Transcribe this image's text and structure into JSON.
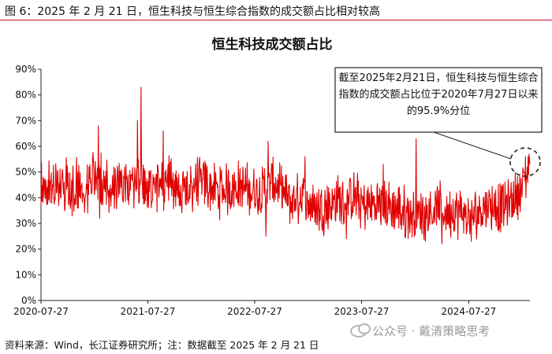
{
  "figure_caption": "图 6：2025 年 2 月 21 日，恒生科技与恒生综合指数的成交额占比相对较高",
  "source_note": "资料来源：Wind，长江证券研究所；注：数据截至 2025 年 2 月 21 日",
  "watermark": {
    "text": "公众号 · 戴清策略思考",
    "icon": "wechat-icon"
  },
  "colors": {
    "series": "#e00000",
    "caption_rule": "#c8102e",
    "axis": "#222222",
    "callout_border": "#222222"
  },
  "chart_data": {
    "type": "line",
    "title": "恒生科技成交额占比",
    "xlabel": "",
    "ylabel": "",
    "x_ticks": [
      "2020-07-27",
      "2021-07-27",
      "2022-07-27",
      "2023-07-27",
      "2024-07-27"
    ],
    "x_range": [
      "2020-07-27",
      "2025-02-21"
    ],
    "y_ticks": [
      "0%",
      "10%",
      "20%",
      "30%",
      "40%",
      "50%",
      "60%",
      "70%",
      "80%",
      "90%"
    ],
    "ylim": [
      0,
      90
    ],
    "grid": false,
    "legend": false,
    "annotation": "截至2025年2月21日，恒生科技与恒生综合指数的成交额占比位于2020年7月27日以来的95.9%分位",
    "series": [
      {
        "x": [
          "2020-07-27",
          "2020-09-01",
          "2020-10-01",
          "2020-11-01",
          "2020-12-01",
          "2021-01-01",
          "2021-02-01",
          "2021-03-01",
          "2021-04-01",
          "2021-05-01",
          "2021-06-01",
          "2021-07-01",
          "2021-08-01",
          "2021-09-01",
          "2021-10-01",
          "2021-11-01",
          "2021-12-01",
          "2022-01-01",
          "2022-02-01",
          "2022-03-01",
          "2022-04-01",
          "2022-05-01",
          "2022-06-01",
          "2022-07-01",
          "2022-08-01",
          "2022-09-01",
          "2022-10-01",
          "2022-11-01",
          "2022-12-01",
          "2023-01-01",
          "2023-02-01",
          "2023-03-01",
          "2023-04-01",
          "2023-05-01",
          "2023-06-01",
          "2023-07-01",
          "2023-08-01",
          "2023-09-01",
          "2023-10-01",
          "2023-11-01",
          "2023-12-01",
          "2024-01-01",
          "2024-02-01",
          "2024-03-01",
          "2024-04-01",
          "2024-05-01",
          "2024-06-01",
          "2024-07-01",
          "2024-08-01",
          "2024-09-01",
          "2024-10-01",
          "2024-11-01",
          "2024-12-01",
          "2025-01-01",
          "2025-02-01",
          "2025-02-21"
        ],
        "y": [
          44,
          45,
          47,
          43,
          46,
          44,
          49,
          46,
          43,
          45,
          44,
          47,
          44,
          45,
          46,
          44,
          43,
          45,
          46,
          44,
          42,
          44,
          45,
          43,
          42,
          44,
          46,
          41,
          38,
          40,
          38,
          36,
          37,
          39,
          38,
          40,
          37,
          37,
          38,
          36,
          35,
          34,
          33,
          34,
          36,
          35,
          34,
          34,
          32,
          35,
          38,
          36,
          37,
          40,
          46,
          53
        ]
      }
    ]
  }
}
